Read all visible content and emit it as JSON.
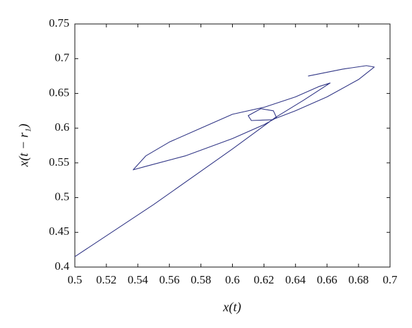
{
  "chart_data": {
    "type": "line",
    "xlabel": "x(t)",
    "ylabel": "x(t − r₁)",
    "x": [
      0.5,
      0.55,
      0.6,
      0.627,
      0.645,
      0.662,
      0.655,
      0.64,
      0.62,
      0.6,
      0.58,
      0.56,
      0.545,
      0.537,
      0.545,
      0.57,
      0.6,
      0.62,
      0.628,
      0.626,
      0.618,
      0.61,
      0.612,
      0.625,
      0.64,
      0.66,
      0.68,
      0.69,
      0.685,
      0.67,
      0.648
    ],
    "values": [
      0.415,
      0.49,
      0.57,
      0.615,
      0.64,
      0.665,
      0.66,
      0.645,
      0.63,
      0.62,
      0.6,
      0.58,
      0.56,
      0.54,
      0.545,
      0.56,
      0.585,
      0.605,
      0.615,
      0.625,
      0.628,
      0.618,
      0.611,
      0.612,
      0.625,
      0.645,
      0.67,
      0.688,
      0.69,
      0.685,
      0.675
    ],
    "color": "#2e3384",
    "xlim": [
      0.5,
      0.7
    ],
    "ylim": [
      0.4,
      0.75
    ],
    "xticks": [
      0.5,
      0.52,
      0.54,
      0.56,
      0.58,
      0.6,
      0.62,
      0.64,
      0.66,
      0.68,
      0.7
    ],
    "yticks": [
      0.4,
      0.45,
      0.5,
      0.55,
      0.6,
      0.65,
      0.7,
      0.75
    ],
    "grid": false
  }
}
